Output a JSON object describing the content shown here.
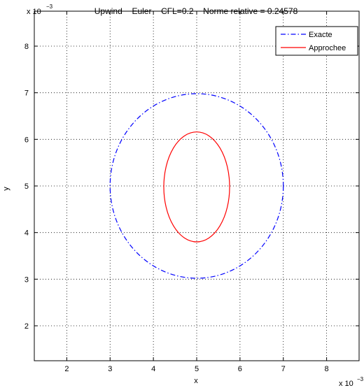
{
  "chart_data": {
    "type": "line",
    "title": "Upwind − Euler − CFL=0.2 − Norme relative = 0.24578",
    "xlabel": "x",
    "ylabel": "y",
    "x_multiplier": "x 10",
    "x_exponent": "−3",
    "y_multiplier": "x 10",
    "y_exponent": "−3",
    "xlim": [
      1.25,
      8.75
    ],
    "ylim": [
      1.25,
      8.75
    ],
    "xticks": [
      "2",
      "3",
      "4",
      "5",
      "6",
      "7",
      "8"
    ],
    "yticks": [
      "2",
      "3",
      "4",
      "5",
      "6",
      "7",
      "8"
    ],
    "grid": true,
    "legend_position": "top-right",
    "series": [
      {
        "name": "Exacte",
        "shape": "circle",
        "center": [
          5.0,
          5.0
        ],
        "radius_x": 2.0,
        "radius_y": 1.98,
        "color": "#0000ff",
        "style": "dash-dot"
      },
      {
        "name": "Approchee",
        "shape": "ellipse",
        "center": [
          5.0,
          4.98
        ],
        "radius_x": 0.76,
        "radius_y": 1.18,
        "color": "#ff0000",
        "style": "solid"
      }
    ]
  }
}
